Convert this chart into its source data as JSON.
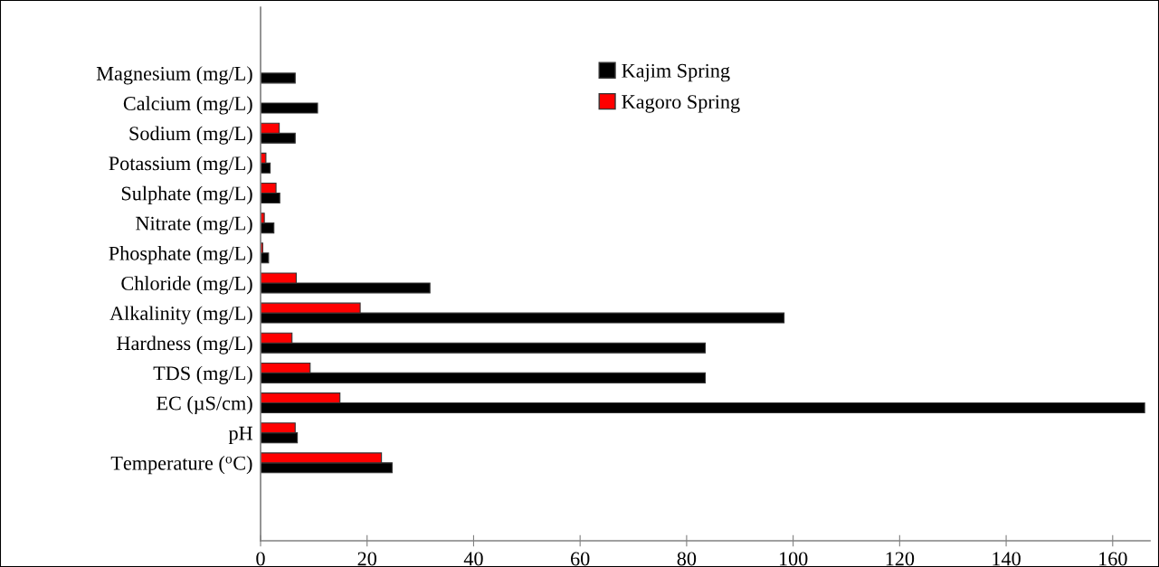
{
  "chart_data": {
    "type": "bar",
    "orientation": "horizontal",
    "categories": [
      "Magnesium (mg/L)",
      "Calcium (mg/L)",
      "Sodium (mg/L)",
      "Potassium (mg/L)",
      "Sulphate (mg/L)",
      "Nitrate (mg/L)",
      "Phosphate (mg/L)",
      "Chloride (mg/L)",
      "Alkalinity (mg/L)",
      "Hardness (mg/L)",
      "TDS (mg/L)",
      "EC (µS/cm)",
      "pH",
      "Temperature ($^{o}$C)"
    ],
    "series": [
      {
        "name": "Kajim Spring",
        "color": "#000000",
        "values": [
          6.5,
          10.7,
          6.5,
          1.8,
          3.6,
          2.5,
          1.5,
          31.8,
          98.3,
          83.5,
          83.5,
          166,
          6.9,
          24.7
        ]
      },
      {
        "name": "Kagoro Spring",
        "color": "#ff0000",
        "values": [
          null,
          null,
          3.5,
          1.0,
          2.9,
          0.7,
          0.4,
          6.7,
          18.7,
          5.9,
          9.3,
          14.9,
          6.5,
          22.7
        ]
      }
    ],
    "xlim": [
      0,
      167
    ],
    "xticks": [
      0,
      20,
      40,
      60,
      80,
      100,
      120,
      140,
      160
    ],
    "grid": false,
    "legend": "top"
  }
}
